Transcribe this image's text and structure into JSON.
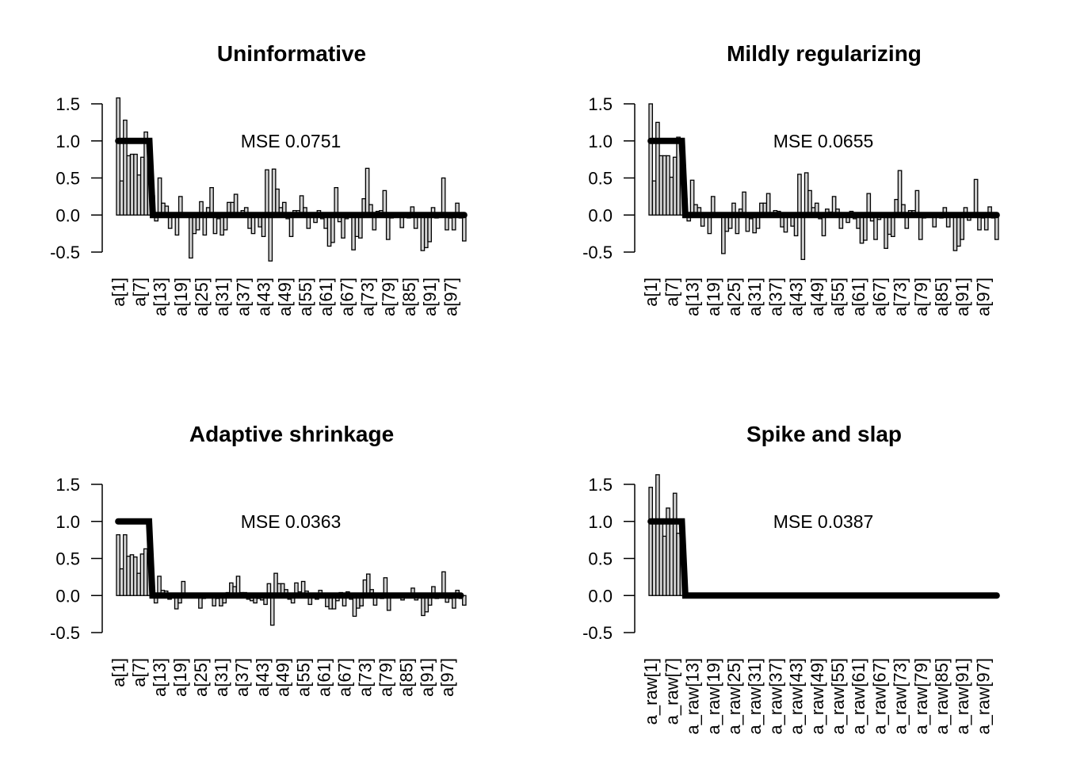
{
  "chart_data": [
    {
      "type": "bar",
      "title": "Uninformative",
      "annotation": "MSE 0.0751",
      "ylim": [
        -0.5,
        1.5
      ],
      "yticks": [
        -0.5,
        0.0,
        0.5,
        1.0,
        1.5
      ],
      "ytick_labels": [
        "-0.5",
        "0.0",
        "0.5",
        "1.0",
        "1.5"
      ],
      "xtick_labels": [
        "a[1]",
        "a[7]",
        "a[13]",
        "a[19]",
        "a[25]",
        "a[31]",
        "a[37]",
        "a[43]",
        "a[49]",
        "a[55]",
        "a[61]",
        "a[67]",
        "a[73]",
        "a[79]",
        "a[85]",
        "a[91]",
        "a[97]"
      ],
      "values": [
        1.58,
        0.46,
        1.28,
        0.8,
        0.82,
        0.82,
        0.54,
        0.78,
        1.12,
        0.92,
        0.26,
        -0.08,
        0.5,
        0.16,
        0.12,
        -0.18,
        0.02,
        -0.27,
        0.25,
        0.0,
        0.0,
        -0.58,
        -0.25,
        -0.2,
        0.18,
        -0.27,
        0.1,
        0.37,
        -0.25,
        -0.05,
        -0.27,
        -0.2,
        0.17,
        0.17,
        0.28,
        0.0,
        0.06,
        0.1,
        -0.18,
        -0.25,
        0.02,
        -0.16,
        -0.29,
        0.61,
        -0.62,
        0.62,
        0.35,
        0.1,
        0.17,
        -0.05,
        -0.29,
        0.06,
        0.06,
        0.26,
        0.1,
        -0.18,
        0.02,
        -0.1,
        0.06,
        -0.05,
        -0.18,
        -0.42,
        -0.37,
        0.37,
        -0.09,
        -0.31,
        -0.05,
        0.0,
        -0.47,
        -0.29,
        -0.31,
        0.22,
        0.63,
        0.14,
        -0.2,
        0.05,
        0.06,
        0.33,
        -0.33,
        -0.04,
        0.0,
        0.03,
        -0.17,
        0.0,
        -0.04,
        0.11,
        -0.18,
        0.02,
        -0.48,
        -0.44,
        -0.36,
        0.1,
        -0.04,
        0.0,
        0.5,
        -0.2,
        -0.04,
        -0.2,
        0.16,
        -0.04,
        -0.35
      ],
      "truth": [
        1,
        1,
        1,
        1,
        1,
        1,
        1,
        1,
        1,
        1,
        0,
        0,
        0,
        0,
        0,
        0,
        0,
        0,
        0,
        0,
        0,
        0,
        0,
        0,
        0,
        0,
        0,
        0,
        0,
        0,
        0,
        0,
        0,
        0,
        0,
        0,
        0,
        0,
        0,
        0,
        0,
        0,
        0,
        0,
        0,
        0,
        0,
        0,
        0,
        0,
        0,
        0,
        0,
        0,
        0,
        0,
        0,
        0,
        0,
        0,
        0,
        0,
        0,
        0,
        0,
        0,
        0,
        0,
        0,
        0,
        0,
        0,
        0,
        0,
        0,
        0,
        0,
        0,
        0,
        0,
        0,
        0,
        0,
        0,
        0,
        0,
        0,
        0,
        0,
        0,
        0,
        0,
        0,
        0,
        0,
        0,
        0,
        0,
        0,
        0,
        0
      ]
    },
    {
      "type": "bar",
      "title": "Mildly regularizing",
      "annotation": "MSE 0.0655",
      "ylim": [
        -0.5,
        1.5
      ],
      "yticks": [
        -0.5,
        0.0,
        0.5,
        1.0,
        1.5
      ],
      "ytick_labels": [
        "-0.5",
        "0.0",
        "0.5",
        "1.0",
        "1.5"
      ],
      "xtick_labels": [
        "a[1]",
        "a[7]",
        "a[13]",
        "a[19]",
        "a[25]",
        "a[31]",
        "a[37]",
        "a[43]",
        "a[49]",
        "a[55]",
        "a[61]",
        "a[67]",
        "a[73]",
        "a[79]",
        "a[85]",
        "a[91]",
        "a[97]"
      ],
      "values": [
        1.5,
        0.46,
        1.25,
        0.8,
        0.8,
        0.8,
        0.51,
        0.78,
        1.05,
        0.92,
        0.22,
        -0.08,
        0.47,
        0.14,
        0.1,
        -0.15,
        0.02,
        -0.25,
        0.25,
        0.0,
        0.0,
        -0.52,
        -0.22,
        -0.18,
        0.16,
        -0.25,
        0.08,
        0.31,
        -0.22,
        -0.05,
        -0.24,
        -0.18,
        0.16,
        0.16,
        0.29,
        0.0,
        0.06,
        0.05,
        -0.16,
        -0.23,
        0.02,
        -0.15,
        -0.28,
        0.55,
        -0.6,
        0.57,
        0.33,
        0.1,
        0.16,
        -0.05,
        -0.28,
        0.08,
        0.04,
        0.25,
        0.08,
        -0.18,
        0.02,
        -0.1,
        0.05,
        -0.05,
        -0.18,
        -0.38,
        -0.34,
        0.29,
        -0.08,
        -0.33,
        -0.06,
        0.0,
        -0.45,
        -0.26,
        -0.29,
        0.21,
        0.6,
        0.14,
        -0.18,
        0.06,
        0.06,
        0.33,
        -0.33,
        -0.04,
        0.0,
        0.01,
        -0.16,
        0.0,
        -0.04,
        0.1,
        -0.16,
        0.02,
        -0.48,
        -0.42,
        -0.33,
        0.1,
        -0.07,
        0.0,
        0.48,
        -0.2,
        -0.04,
        -0.2,
        0.11,
        -0.04,
        -0.33
      ],
      "truth": [
        1,
        1,
        1,
        1,
        1,
        1,
        1,
        1,
        1,
        1,
        0,
        0,
        0,
        0,
        0,
        0,
        0,
        0,
        0,
        0,
        0,
        0,
        0,
        0,
        0,
        0,
        0,
        0,
        0,
        0,
        0,
        0,
        0,
        0,
        0,
        0,
        0,
        0,
        0,
        0,
        0,
        0,
        0,
        0,
        0,
        0,
        0,
        0,
        0,
        0,
        0,
        0,
        0,
        0,
        0,
        0,
        0,
        0,
        0,
        0,
        0,
        0,
        0,
        0,
        0,
        0,
        0,
        0,
        0,
        0,
        0,
        0,
        0,
        0,
        0,
        0,
        0,
        0,
        0,
        0,
        0,
        0,
        0,
        0,
        0,
        0,
        0,
        0,
        0,
        0,
        0,
        0,
        0,
        0,
        0,
        0,
        0,
        0,
        0,
        0,
        0
      ]
    },
    {
      "type": "bar",
      "title": "Adaptive shrinkage",
      "annotation": "MSE 0.0363",
      "ylim": [
        -0.5,
        1.5
      ],
      "yticks": [
        -0.5,
        0.0,
        0.5,
        1.0,
        1.5
      ],
      "ytick_labels": [
        "-0.5",
        "0.0",
        "0.5",
        "1.0",
        "1.5"
      ],
      "xtick_labels": [
        "a[1]",
        "a[7]",
        "a[13]",
        "a[19]",
        "a[25]",
        "a[31]",
        "a[37]",
        "a[43]",
        "a[49]",
        "a[55]",
        "a[61]",
        "a[67]",
        "a[73]",
        "a[79]",
        "a[85]",
        "a[91]",
        "a[97]"
      ],
      "values": [
        0.82,
        0.36,
        0.82,
        0.53,
        0.55,
        0.52,
        0.3,
        0.56,
        0.63,
        0.57,
        0.02,
        -0.1,
        0.26,
        0.07,
        0.06,
        -0.05,
        0.02,
        -0.18,
        -0.1,
        0.19,
        0.0,
        -0.02,
        0.02,
        0.0,
        -0.17,
        -0.04,
        0.03,
        0.03,
        -0.14,
        -0.04,
        -0.14,
        -0.1,
        0.04,
        0.17,
        0.12,
        0.26,
        0.04,
        0.04,
        -0.05,
        -0.07,
        -0.1,
        -0.04,
        -0.06,
        -0.12,
        0.16,
        -0.4,
        0.3,
        0.16,
        0.16,
        0.08,
        -0.05,
        -0.1,
        0.17,
        0.05,
        0.19,
        0.06,
        -0.12,
        0.02,
        -0.05,
        0.07,
        -0.02,
        -0.15,
        -0.18,
        -0.18,
        -0.07,
        0.04,
        -0.14,
        0.05,
        -0.05,
        -0.28,
        -0.17,
        -0.14,
        0.21,
        0.29,
        0.08,
        -0.13,
        0.02,
        -0.04,
        0.24,
        -0.2,
        -0.02,
        0.0,
        0.0,
        -0.06,
        0.0,
        -0.02,
        0.1,
        -0.06,
        0.02,
        -0.27,
        -0.22,
        -0.13,
        0.12,
        -0.04,
        0.0,
        0.32,
        -0.09,
        -0.04,
        -0.17,
        0.07,
        -0.04,
        -0.13
      ],
      "truth": [
        1,
        1,
        1,
        1,
        1,
        1,
        1,
        1,
        1,
        1,
        0,
        0,
        0,
        0,
        0,
        0,
        0,
        0,
        0,
        0,
        0,
        0,
        0,
        0,
        0,
        0,
        0,
        0,
        0,
        0,
        0,
        0,
        0,
        0,
        0,
        0,
        0,
        0,
        0,
        0,
        0,
        0,
        0,
        0,
        0,
        0,
        0,
        0,
        0,
        0,
        0,
        0,
        0,
        0,
        0,
        0,
        0,
        0,
        0,
        0,
        0,
        0,
        0,
        0,
        0,
        0,
        0,
        0,
        0,
        0,
        0,
        0,
        0,
        0,
        0,
        0,
        0,
        0,
        0,
        0,
        0,
        0,
        0,
        0,
        0,
        0,
        0,
        0,
        0,
        0,
        0,
        0,
        0,
        0,
        0,
        0,
        0,
        0,
        0,
        0,
        0
      ]
    },
    {
      "type": "bar",
      "title": "Spike and slap",
      "annotation": "MSE 0.0387",
      "ylim": [
        -0.5,
        1.5
      ],
      "yticks": [
        -0.5,
        0.0,
        0.5,
        1.0,
        1.5
      ],
      "ytick_labels": [
        "-0.5",
        "0.0",
        "0.5",
        "1.0",
        "1.5"
      ],
      "xtick_labels": [
        "a_raw[1]",
        "a_raw[7]",
        "a_raw[13]",
        "a_raw[19]",
        "a_raw[25]",
        "a_raw[31]",
        "a_raw[37]",
        "a_raw[43]",
        "a_raw[49]",
        "a_raw[55]",
        "a_raw[61]",
        "a_raw[67]",
        "a_raw[73]",
        "a_raw[79]",
        "a_raw[85]",
        "a_raw[91]",
        "a_raw[97]"
      ],
      "values": [
        1.46,
        0.98,
        1.63,
        1.01,
        0.8,
        1.18,
        1.01,
        1.38,
        0.84,
        1.01,
        0,
        0,
        0,
        0,
        0,
        0,
        0,
        0,
        0,
        0,
        0,
        0,
        0,
        0,
        0,
        0,
        0,
        0,
        0,
        0,
        0,
        0,
        0,
        0,
        0,
        0,
        0,
        0,
        0,
        0,
        0,
        0,
        0,
        0,
        0,
        0,
        0,
        0,
        0,
        0,
        0,
        0,
        0,
        0,
        0,
        0,
        0,
        0,
        0,
        0,
        0,
        0,
        0,
        0,
        0,
        0,
        0,
        0,
        0,
        0,
        0,
        0,
        0,
        0,
        0,
        0,
        0,
        0,
        0,
        0,
        0,
        0,
        0,
        0,
        0,
        0,
        0,
        0,
        0,
        0,
        0,
        0,
        0,
        0,
        0,
        0,
        0,
        0,
        0,
        0,
        0
      ],
      "truth": [
        1,
        1,
        1,
        1,
        1,
        1,
        1,
        1,
        1,
        1,
        0,
        0,
        0,
        0,
        0,
        0,
        0,
        0,
        0,
        0,
        0,
        0,
        0,
        0,
        0,
        0,
        0,
        0,
        0,
        0,
        0,
        0,
        0,
        0,
        0,
        0,
        0,
        0,
        0,
        0,
        0,
        0,
        0,
        0,
        0,
        0,
        0,
        0,
        0,
        0,
        0,
        0,
        0,
        0,
        0,
        0,
        0,
        0,
        0,
        0,
        0,
        0,
        0,
        0,
        0,
        0,
        0,
        0,
        0,
        0,
        0,
        0,
        0,
        0,
        0,
        0,
        0,
        0,
        0,
        0,
        0,
        0,
        0,
        0,
        0,
        0,
        0,
        0,
        0,
        0,
        0,
        0,
        0,
        0,
        0,
        0,
        0,
        0,
        0,
        0,
        0
      ]
    }
  ]
}
